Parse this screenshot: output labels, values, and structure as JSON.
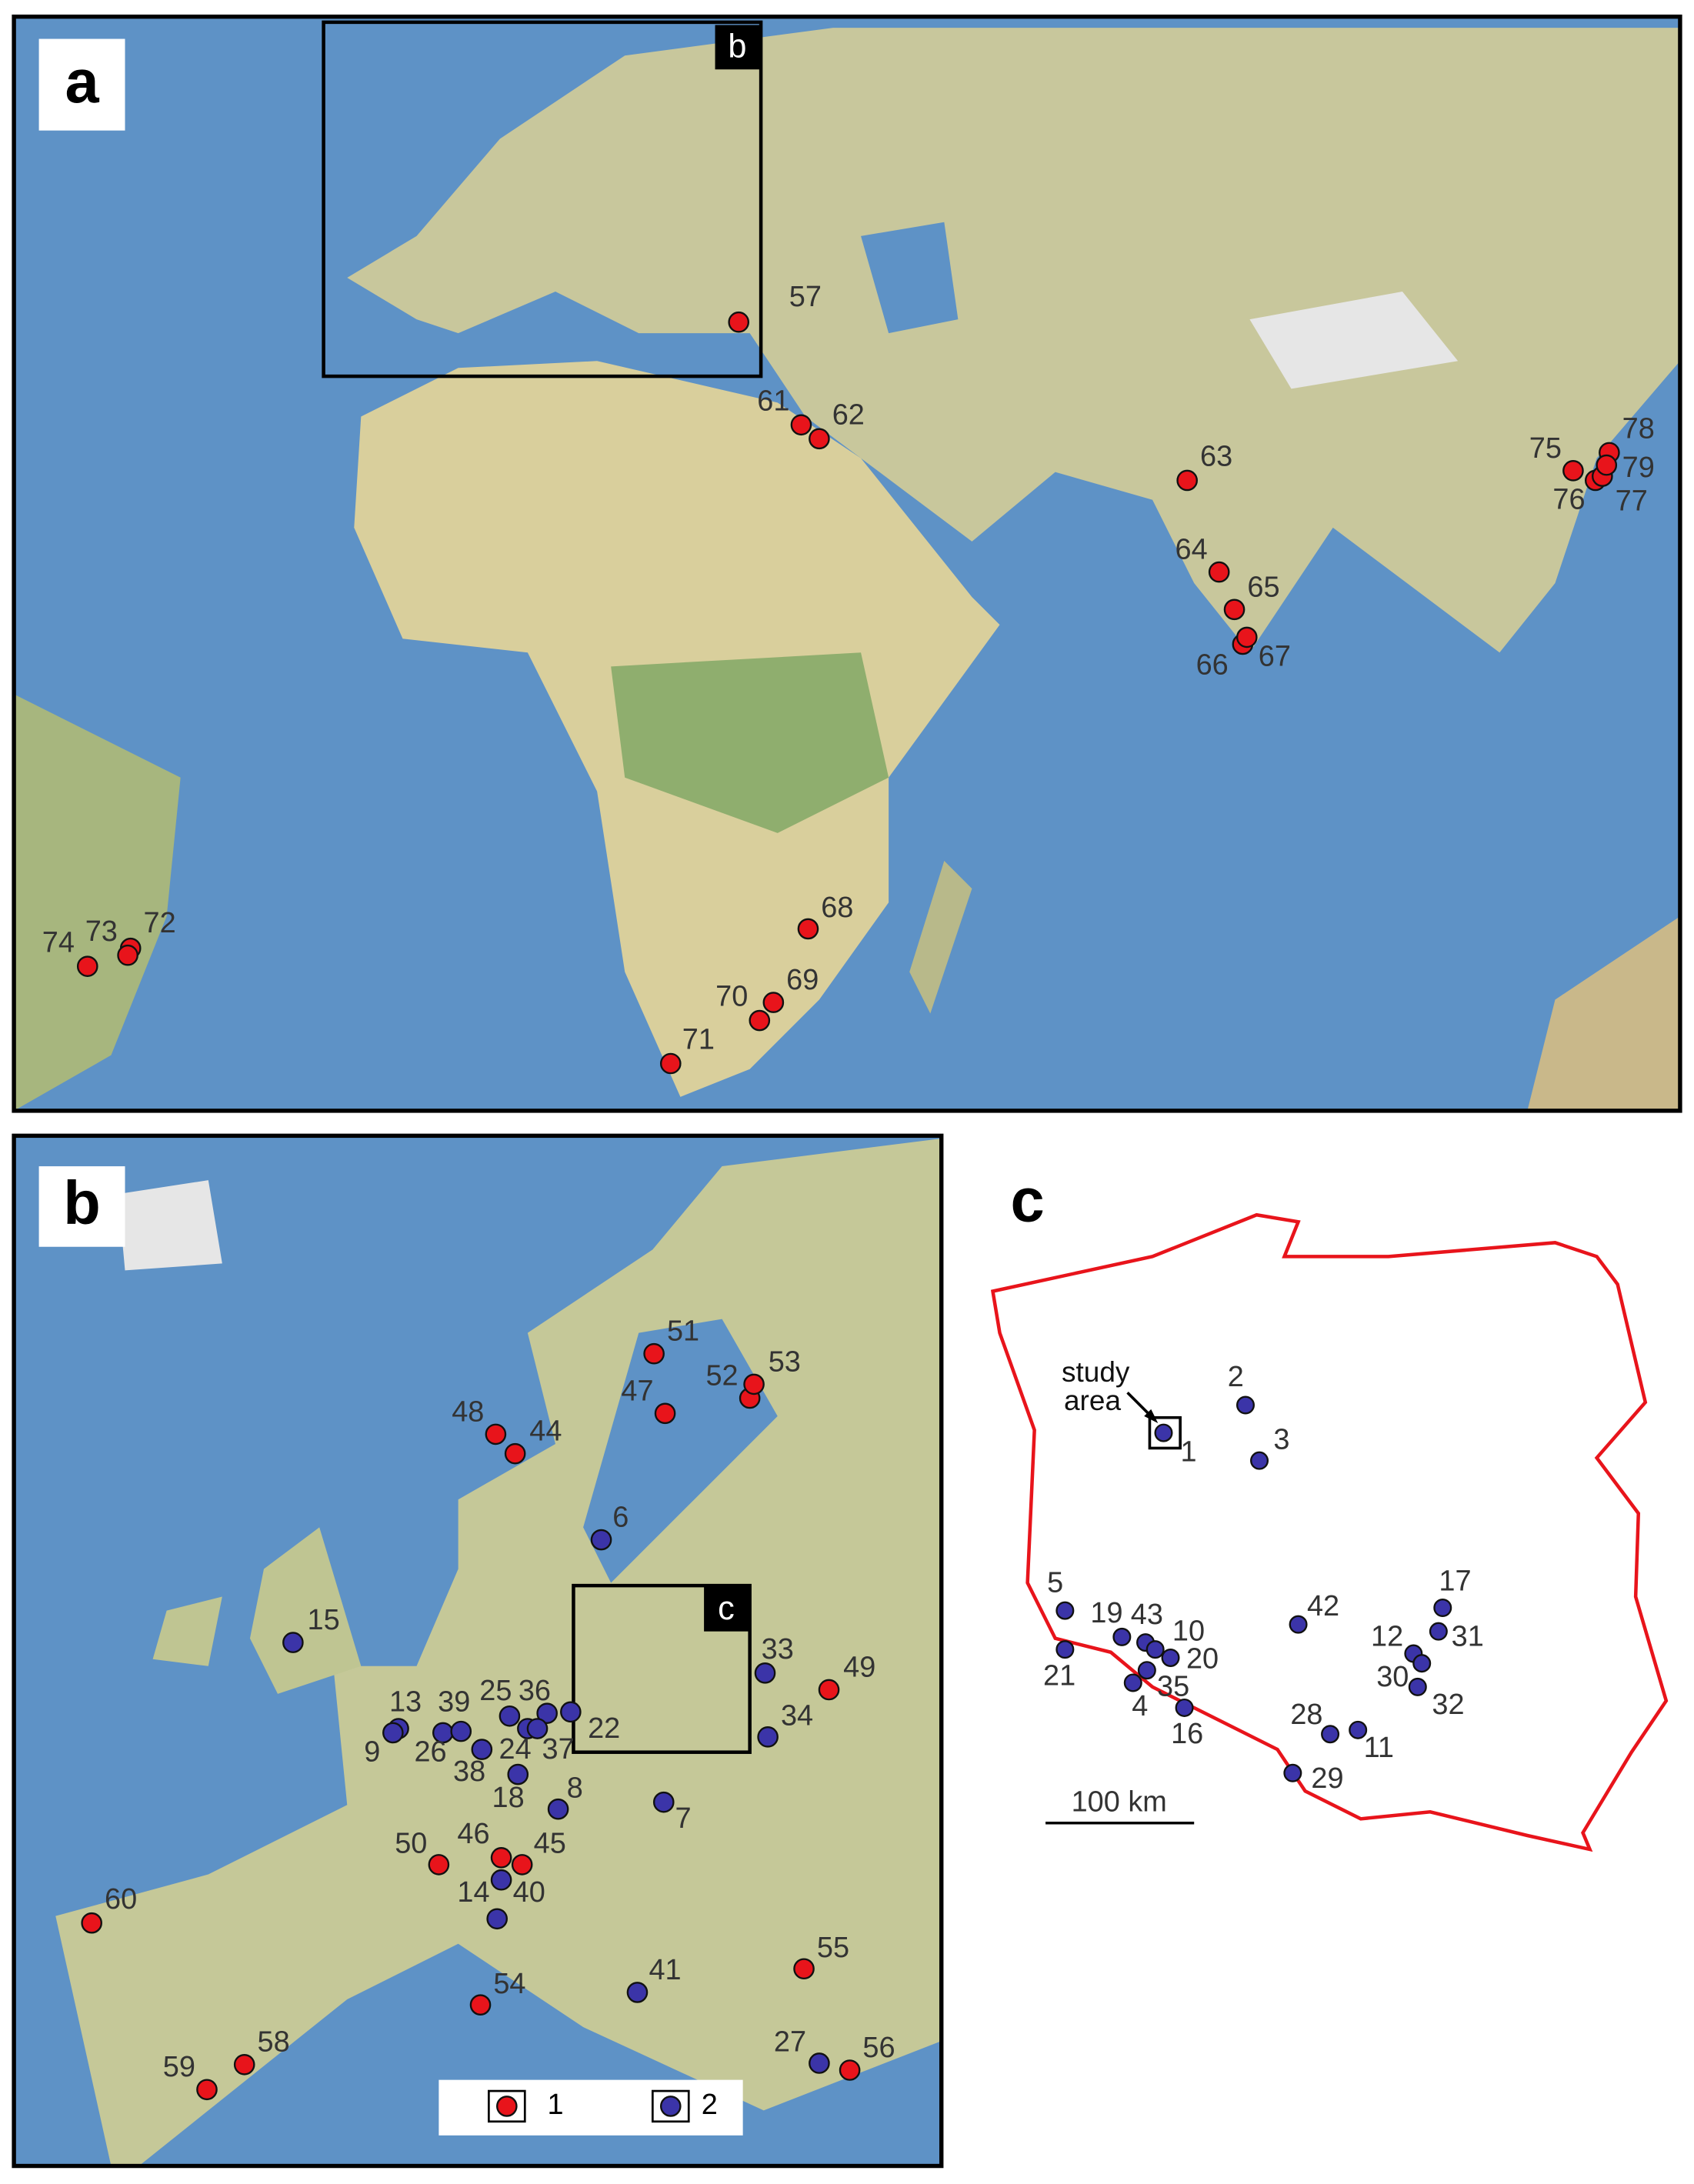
{
  "panels": [
    {
      "label": "a",
      "inset_box_label": "b",
      "points": [
        {
          "label": "57",
          "group": 1
        },
        {
          "label": "61",
          "group": 1
        },
        {
          "label": "62",
          "group": 1
        },
        {
          "label": "63",
          "group": 1
        },
        {
          "label": "64",
          "group": 1
        },
        {
          "label": "65",
          "group": 1
        },
        {
          "label": "66",
          "group": 1
        },
        {
          "label": "67",
          "group": 1
        },
        {
          "label": "68",
          "group": 1
        },
        {
          "label": "69",
          "group": 1
        },
        {
          "label": "70",
          "group": 1
        },
        {
          "label": "71",
          "group": 1
        },
        {
          "label": "72",
          "group": 1
        },
        {
          "label": "73",
          "group": 1
        },
        {
          "label": "74",
          "group": 1
        },
        {
          "label": "75",
          "group": 1
        },
        {
          "label": "76",
          "group": 1
        },
        {
          "label": "77",
          "group": 1
        },
        {
          "label": "78",
          "group": 1
        },
        {
          "label": "79",
          "group": 1
        }
      ]
    },
    {
      "label": "b",
      "inset_box_label": "c",
      "points": [
        {
          "label": "44",
          "group": 1
        },
        {
          "label": "47",
          "group": 1
        },
        {
          "label": "48",
          "group": 1
        },
        {
          "label": "51",
          "group": 1
        },
        {
          "label": "52",
          "group": 1
        },
        {
          "label": "53",
          "group": 1
        },
        {
          "label": "49",
          "group": 1
        },
        {
          "label": "45",
          "group": 1
        },
        {
          "label": "46",
          "group": 1
        },
        {
          "label": "50",
          "group": 1
        },
        {
          "label": "54",
          "group": 1
        },
        {
          "label": "55",
          "group": 1
        },
        {
          "label": "56",
          "group": 1
        },
        {
          "label": "58",
          "group": 1
        },
        {
          "label": "59",
          "group": 1
        },
        {
          "label": "60",
          "group": 1
        },
        {
          "label": "6",
          "group": 2
        },
        {
          "label": "15",
          "group": 2
        },
        {
          "label": "13",
          "group": 2
        },
        {
          "label": "9",
          "group": 2
        },
        {
          "label": "26",
          "group": 2
        },
        {
          "label": "39",
          "group": 2
        },
        {
          "label": "25",
          "group": 2
        },
        {
          "label": "36",
          "group": 2
        },
        {
          "label": "24",
          "group": 2
        },
        {
          "label": "37",
          "group": 2
        },
        {
          "label": "22",
          "group": 2
        },
        {
          "label": "38",
          "group": 2
        },
        {
          "label": "18",
          "group": 2
        },
        {
          "label": "8",
          "group": 2
        },
        {
          "label": "7",
          "group": 2
        },
        {
          "label": "33",
          "group": 2
        },
        {
          "label": "34",
          "group": 2
        },
        {
          "label": "14",
          "group": 2
        },
        {
          "label": "40",
          "group": 2
        },
        {
          "label": "41",
          "group": 2
        },
        {
          "label": "27",
          "group": 2
        }
      ]
    },
    {
      "label": "c",
      "points": [
        {
          "label": "1",
          "group": 2
        },
        {
          "label": "2",
          "group": 2
        },
        {
          "label": "3",
          "group": 2
        },
        {
          "label": "5",
          "group": 2
        },
        {
          "label": "19",
          "group": 2
        },
        {
          "label": "43",
          "group": 2
        },
        {
          "label": "10",
          "group": 2
        },
        {
          "label": "20",
          "group": 2
        },
        {
          "label": "21",
          "group": 2
        },
        {
          "label": "4",
          "group": 2
        },
        {
          "label": "35",
          "group": 2
        },
        {
          "label": "16",
          "group": 2
        },
        {
          "label": "42",
          "group": 2
        },
        {
          "label": "17",
          "group": 2
        },
        {
          "label": "31",
          "group": 2
        },
        {
          "label": "12",
          "group": 2
        },
        {
          "label": "30",
          "group": 2
        },
        {
          "label": "32",
          "group": 2
        },
        {
          "label": "28",
          "group": 2
        },
        {
          "label": "11",
          "group": 2
        },
        {
          "label": "29",
          "group": 2
        }
      ]
    }
  ],
  "legend": [
    {
      "label": "1",
      "color": "#e8141b"
    },
    {
      "label": "2",
      "color": "#3b34a8"
    }
  ],
  "study_area": "study area",
  "scale_bar": "100 km"
}
